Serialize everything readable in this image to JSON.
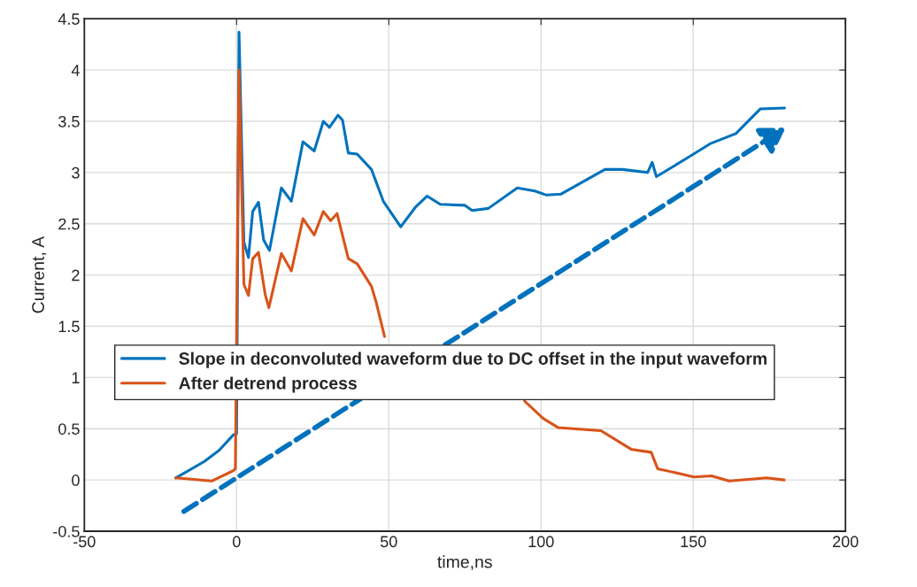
{
  "chart_data": {
    "type": "line",
    "xlabel": "time,ns",
    "ylabel": "Current, A",
    "xlim": [
      -50,
      200
    ],
    "ylim": [
      -0.5,
      4.5
    ],
    "xticks": [
      -50,
      0,
      50,
      100,
      150,
      200
    ],
    "yticks": [
      -0.5,
      0,
      0.5,
      1,
      1.5,
      2,
      2.5,
      3,
      3.5,
      4,
      4.5
    ],
    "grid": true,
    "legend": "left",
    "line_style": "solid",
    "marker": "none",
    "series": [
      {
        "name": "Slope in deconvoluted waveform due to DC offset in the input waveform",
        "color": "#0072bd",
        "x": [
          -20,
          -10.6,
          -5.7,
          -1.1,
          0,
          0.8,
          2.4,
          3.9,
          5.3,
          7.2,
          8.9,
          10.8,
          14.7,
          18.0,
          21.8,
          25.5,
          28.5,
          30.5,
          33.3,
          34.8,
          36.7,
          39.6,
          44.3,
          48.2,
          53.9,
          58.7,
          62.6,
          66.9,
          75,
          77.4,
          82.7,
          92.2,
          98,
          101.8,
          106.6,
          121,
          126.7,
          135,
          136.5,
          137.9,
          146.8,
          155.5,
          164,
          172,
          180
        ],
        "values": [
          0.02,
          0.18,
          0.29,
          0.44,
          0.45,
          4.37,
          2.32,
          2.17,
          2.62,
          2.71,
          2.34,
          2.24,
          2.85,
          2.72,
          3.3,
          3.21,
          3.5,
          3.44,
          3.56,
          3.51,
          3.19,
          3.18,
          3.03,
          2.72,
          2.47,
          2.66,
          2.77,
          2.69,
          2.68,
          2.63,
          2.65,
          2.85,
          2.82,
          2.78,
          2.79,
          3.03,
          3.03,
          3.0,
          3.1,
          2.96,
          3.12,
          3.28,
          3.38,
          3.62,
          3.63
        ]
      },
      {
        "name": "After detrend process",
        "color": "#d95319",
        "x": [
          -20,
          -15.6,
          -8.2,
          -1.1,
          -0.4,
          0.8,
          2.4,
          3.9,
          5.3,
          7.2,
          9.4,
          10.6,
          14.7,
          18.0,
          21.8,
          25.5,
          28.5,
          30.9,
          33,
          36.7,
          39.6,
          44.3,
          45.8,
          48.6,
          70,
          94.6,
          100.7,
          105.7,
          119.7,
          129.6,
          136.2,
          138.3,
          142.8,
          150.2,
          156,
          161.8,
          174.1,
          179.9
        ],
        "values": [
          0.02,
          0.01,
          -0.01,
          0.09,
          0.11,
          4.0,
          1.91,
          1.8,
          2.16,
          2.22,
          1.81,
          1.68,
          2.21,
          2.04,
          2.55,
          2.39,
          2.62,
          2.53,
          2.6,
          2.16,
          2.11,
          1.89,
          1.74,
          1.4,
          null,
          0.77,
          0.6,
          0.51,
          0.48,
          0.3,
          0.27,
          0.11,
          0.08,
          0.03,
          0.04,
          -0.01,
          0.02,
          0.0
        ]
      }
    ]
  }
}
